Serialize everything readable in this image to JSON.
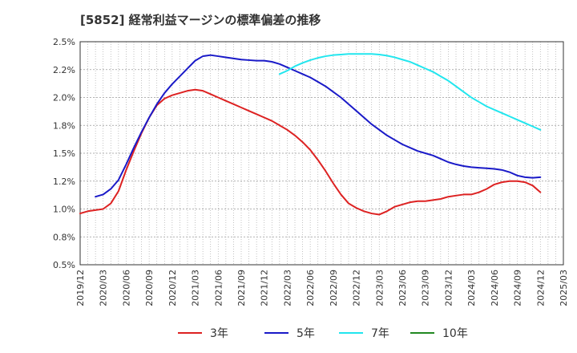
{
  "chart_data": {
    "type": "line",
    "title": "[5852]  経常利益マージンの標準偏差の推移",
    "xlabel": "",
    "ylabel": "",
    "ylim": [
      0.5,
      2.5
    ],
    "yticks": [
      "2.5%",
      "2.2%",
      "2.0%",
      "1.8%",
      "1.5%",
      "1.2%",
      "1.0%",
      "0.8%",
      "0.5%"
    ],
    "xticks": [
      "2019/12",
      "2020/03",
      "2020/06",
      "2020/09",
      "2020/12",
      "2021/03",
      "2021/06",
      "2021/09",
      "2021/12",
      "2022/03",
      "2022/06",
      "2022/09",
      "2022/12",
      "2023/03",
      "2023/06",
      "2023/09",
      "2023/12",
      "2024/03",
      "2024/06",
      "2024/09",
      "2024/12",
      "2025/03"
    ],
    "grid": true,
    "legend_position": "bottom",
    "series": [
      {
        "name": "3年",
        "color": "#dd2222",
        "values": [
          [
            "2019/12",
            0.96
          ],
          [
            "2020/01",
            0.98
          ],
          [
            "2020/02",
            0.99
          ],
          [
            "2020/03",
            1.0
          ],
          [
            "2020/04",
            1.05
          ],
          [
            "2020/05",
            1.16
          ],
          [
            "2020/06",
            1.35
          ],
          [
            "2020/07",
            1.52
          ],
          [
            "2020/08",
            1.68
          ],
          [
            "2020/09",
            1.82
          ],
          [
            "2020/10",
            1.93
          ],
          [
            "2020/11",
            1.99
          ],
          [
            "2020/12",
            2.02
          ],
          [
            "2021/01",
            2.04
          ],
          [
            "2021/02",
            2.06
          ],
          [
            "2021/03",
            2.07
          ],
          [
            "2021/04",
            2.06
          ],
          [
            "2021/05",
            2.03
          ],
          [
            "2021/06",
            2.0
          ],
          [
            "2021/07",
            1.97
          ],
          [
            "2021/08",
            1.94
          ],
          [
            "2021/09",
            1.91
          ],
          [
            "2021/10",
            1.88
          ],
          [
            "2021/11",
            1.85
          ],
          [
            "2021/12",
            1.82
          ],
          [
            "2022/01",
            1.79
          ],
          [
            "2022/02",
            1.75
          ],
          [
            "2022/03",
            1.71
          ],
          [
            "2022/04",
            1.66
          ],
          [
            "2022/05",
            1.6
          ],
          [
            "2022/06",
            1.53
          ],
          [
            "2022/07",
            1.44
          ],
          [
            "2022/08",
            1.34
          ],
          [
            "2022/09",
            1.23
          ],
          [
            "2022/10",
            1.13
          ],
          [
            "2022/11",
            1.05
          ],
          [
            "2022/12",
            1.01
          ],
          [
            "2023/01",
            0.98
          ],
          [
            "2023/02",
            0.96
          ],
          [
            "2023/03",
            0.95
          ],
          [
            "2023/04",
            0.98
          ],
          [
            "2023/05",
            1.02
          ],
          [
            "2023/06",
            1.04
          ],
          [
            "2023/07",
            1.06
          ],
          [
            "2023/08",
            1.07
          ],
          [
            "2023/09",
            1.07
          ],
          [
            "2023/10",
            1.08
          ],
          [
            "2023/11",
            1.09
          ],
          [
            "2023/12",
            1.11
          ],
          [
            "2024/01",
            1.12
          ],
          [
            "2024/02",
            1.13
          ],
          [
            "2024/03",
            1.13
          ],
          [
            "2024/04",
            1.15
          ],
          [
            "2024/05",
            1.18
          ],
          [
            "2024/06",
            1.22
          ],
          [
            "2024/07",
            1.24
          ],
          [
            "2024/08",
            1.25
          ],
          [
            "2024/09",
            1.25
          ],
          [
            "2024/10",
            1.24
          ],
          [
            "2024/11",
            1.21
          ],
          [
            "2024/12",
            1.15
          ]
        ]
      },
      {
        "name": "5年",
        "color": "#1a1ac8",
        "values": [
          [
            "2020/02",
            1.11
          ],
          [
            "2020/03",
            1.13
          ],
          [
            "2020/04",
            1.18
          ],
          [
            "2020/05",
            1.26
          ],
          [
            "2020/06",
            1.4
          ],
          [
            "2020/07",
            1.55
          ],
          [
            "2020/08",
            1.69
          ],
          [
            "2020/09",
            1.82
          ],
          [
            "2020/10",
            1.94
          ],
          [
            "2020/11",
            2.04
          ],
          [
            "2020/12",
            2.12
          ],
          [
            "2021/01",
            2.19
          ],
          [
            "2021/02",
            2.26
          ],
          [
            "2021/03",
            2.33
          ],
          [
            "2021/04",
            2.37
          ],
          [
            "2021/05",
            2.38
          ],
          [
            "2021/06",
            2.37
          ],
          [
            "2021/07",
            2.36
          ],
          [
            "2021/08",
            2.35
          ],
          [
            "2021/09",
            2.34
          ],
          [
            "2021/10",
            2.335
          ],
          [
            "2021/11",
            2.33
          ],
          [
            "2021/12",
            2.33
          ],
          [
            "2022/01",
            2.32
          ],
          [
            "2022/02",
            2.3
          ],
          [
            "2022/03",
            2.27
          ],
          [
            "2022/04",
            2.24
          ],
          [
            "2022/05",
            2.21
          ],
          [
            "2022/06",
            2.18
          ],
          [
            "2022/07",
            2.14
          ],
          [
            "2022/08",
            2.1
          ],
          [
            "2022/09",
            2.05
          ],
          [
            "2022/10",
            2.0
          ],
          [
            "2022/11",
            1.94
          ],
          [
            "2022/12",
            1.88
          ],
          [
            "2023/01",
            1.82
          ],
          [
            "2023/02",
            1.76
          ],
          [
            "2023/03",
            1.71
          ],
          [
            "2023/04",
            1.66
          ],
          [
            "2023/05",
            1.62
          ],
          [
            "2023/06",
            1.58
          ],
          [
            "2023/07",
            1.55
          ],
          [
            "2023/08",
            1.52
          ],
          [
            "2023/09",
            1.5
          ],
          [
            "2023/10",
            1.48
          ],
          [
            "2023/11",
            1.45
          ],
          [
            "2023/12",
            1.42
          ],
          [
            "2024/01",
            1.4
          ],
          [
            "2024/02",
            1.385
          ],
          [
            "2024/03",
            1.375
          ],
          [
            "2024/04",
            1.37
          ],
          [
            "2024/05",
            1.365
          ],
          [
            "2024/06",
            1.36
          ],
          [
            "2024/07",
            1.35
          ],
          [
            "2024/08",
            1.33
          ],
          [
            "2024/09",
            1.3
          ],
          [
            "2024/10",
            1.285
          ],
          [
            "2024/11",
            1.28
          ],
          [
            "2024/12",
            1.285
          ]
        ]
      },
      {
        "name": "7年",
        "color": "#22e6ee",
        "values": [
          [
            "2022/02",
            2.21
          ],
          [
            "2022/03",
            2.24
          ],
          [
            "2022/04",
            2.28
          ],
          [
            "2022/05",
            2.31
          ],
          [
            "2022/06",
            2.335
          ],
          [
            "2022/07",
            2.355
          ],
          [
            "2022/08",
            2.37
          ],
          [
            "2022/09",
            2.38
          ],
          [
            "2022/10",
            2.385
          ],
          [
            "2022/11",
            2.39
          ],
          [
            "2022/12",
            2.39
          ],
          [
            "2023/01",
            2.39
          ],
          [
            "2023/02",
            2.39
          ],
          [
            "2023/03",
            2.385
          ],
          [
            "2023/04",
            2.375
          ],
          [
            "2023/05",
            2.36
          ],
          [
            "2023/06",
            2.34
          ],
          [
            "2023/07",
            2.32
          ],
          [
            "2023/08",
            2.29
          ],
          [
            "2023/09",
            2.26
          ],
          [
            "2023/10",
            2.23
          ],
          [
            "2023/11",
            2.19
          ],
          [
            "2023/12",
            2.15
          ],
          [
            "2024/01",
            2.1
          ],
          [
            "2024/02",
            2.05
          ],
          [
            "2024/03",
            2.0
          ],
          [
            "2024/04",
            1.96
          ],
          [
            "2024/05",
            1.92
          ],
          [
            "2024/06",
            1.89
          ],
          [
            "2024/07",
            1.86
          ],
          [
            "2024/08",
            1.83
          ],
          [
            "2024/09",
            1.8
          ],
          [
            "2024/10",
            1.77
          ],
          [
            "2024/11",
            1.74
          ],
          [
            "2024/12",
            1.71
          ]
        ]
      },
      {
        "name": "10年",
        "color": "#228822",
        "values": []
      }
    ]
  }
}
